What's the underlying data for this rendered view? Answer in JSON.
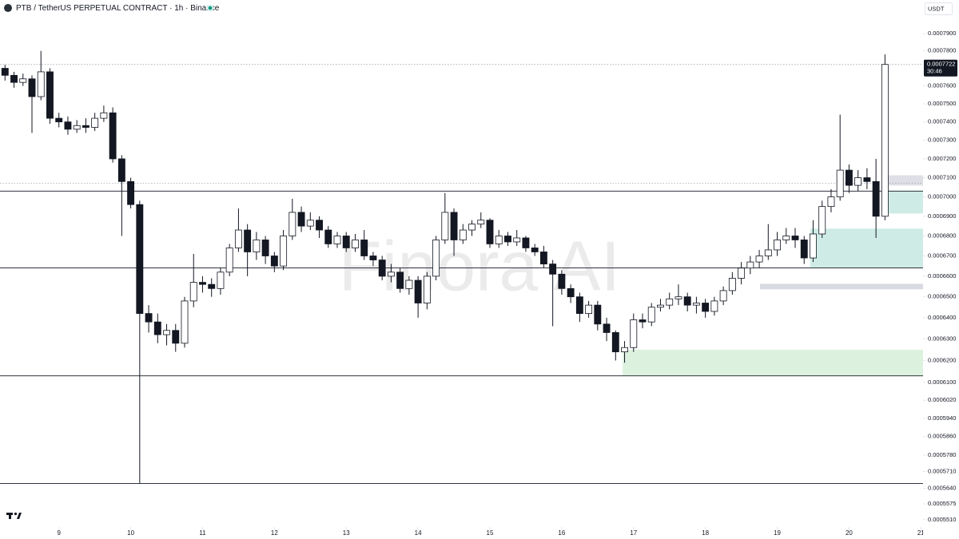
{
  "header": {
    "symbol": "PTB / TetherUS PERPETUAL CONTRACT · 1h · Binance",
    "currency": "USDT",
    "watermark": "Finora AI",
    "countdown": "30:46"
  },
  "chart_data": {
    "type": "candlestick",
    "log_scale": true,
    "grid": false,
    "up_color": "#ffffff",
    "down_color": "#131722",
    "wick_color": "#131722",
    "xlim": [
      8.18,
      21.03
    ],
    "xticks": [
      9,
      10,
      11,
      12,
      13,
      14,
      15,
      16,
      17,
      18,
      19,
      20,
      21
    ],
    "ylim": [
      0.000548,
      0.00081
    ],
    "yticks": [
      {
        "value": 0.00079,
        "label": "0.0007900"
      },
      {
        "value": 0.00078,
        "label": "0.0007800"
      },
      {
        "value": 0.00076,
        "label": "0.0007600"
      },
      {
        "value": 0.00075,
        "label": "0.0007500"
      },
      {
        "value": 0.00074,
        "label": "0.0007400"
      },
      {
        "value": 0.00073,
        "label": "0.0007300"
      },
      {
        "value": 0.00072,
        "label": "0.0007200"
      },
      {
        "value": 0.00071,
        "label": "0.0007100"
      },
      {
        "value": 0.0007,
        "label": "0.0007000"
      },
      {
        "value": 0.00069,
        "label": "0.0006900"
      },
      {
        "value": 0.00068,
        "label": "0.0006800"
      },
      {
        "value": 0.00067,
        "label": "0.0006700"
      },
      {
        "value": 0.00066,
        "label": "0.0006600"
      },
      {
        "value": 0.00065,
        "label": "0.0006500"
      },
      {
        "value": 0.00064,
        "label": "0.0006400"
      },
      {
        "value": 0.00063,
        "label": "0.0006300"
      },
      {
        "value": 0.00062,
        "label": "0.0006200"
      },
      {
        "value": 0.00061,
        "label": "0.0006100"
      },
      {
        "value": 0.000602,
        "label": "0.0006020"
      },
      {
        "value": 0.000594,
        "label": "0.0005940"
      },
      {
        "value": 0.000586,
        "label": "0.0005860"
      },
      {
        "value": 0.000578,
        "label": "0.0005780"
      },
      {
        "value": 0.000571,
        "label": "0.0005710"
      },
      {
        "value": 0.000564,
        "label": "0.0005640"
      },
      0.0005575,
      {
        "value": 0.000551,
        "label": "0.0005510"
      }
    ],
    "x": [
      8.25,
      8.375,
      8.5,
      8.625,
      8.75,
      8.875,
      9,
      9.125,
      9.25,
      9.375,
      9.5,
      9.625,
      9.75,
      9.875,
      10,
      10.125,
      10.25,
      10.375,
      10.5,
      10.625,
      10.75,
      10.875,
      11,
      11.125,
      11.25,
      11.375,
      11.5,
      11.625,
      11.75,
      11.875,
      12,
      12.125,
      12.25,
      12.375,
      12.5,
      12.625,
      12.75,
      12.875,
      13,
      13.125,
      13.25,
      13.375,
      13.5,
      13.625,
      13.75,
      13.875,
      14,
      14.125,
      14.25,
      14.375,
      14.5,
      14.625,
      14.75,
      14.875,
      15,
      15.125,
      15.25,
      15.375,
      15.5,
      15.625,
      15.75,
      15.875,
      16,
      16.125,
      16.25,
      16.375,
      16.5,
      16.625,
      16.75,
      16.875,
      17,
      17.125,
      17.25,
      17.375,
      17.5,
      17.625,
      17.75,
      17.875,
      18,
      18.125,
      18.25,
      18.375,
      18.5,
      18.625,
      18.75,
      18.875,
      19,
      19.125,
      19.25,
      19.375,
      19.5,
      19.625,
      19.75,
      19.875,
      20,
      20.125,
      20.25,
      20.375,
      20.5
    ],
    "open": [
      0.00077,
      0.000766,
      0.000762,
      0.000764,
      0.000754,
      0.000768,
      0.000742,
      0.00074,
      0.000736,
      0.000738,
      0.000737,
      0.000742,
      0.000745,
      0.00072,
      0.000708,
      0.000696,
      0.000642,
      0.000638,
      0.000632,
      0.000634,
      0.000628,
      0.000648,
      0.000657,
      0.000656,
      0.000654,
      0.000662,
      0.000674,
      0.000683,
      0.000672,
      0.000678,
      0.00067,
      0.000665,
      0.00068,
      0.000692,
      0.000685,
      0.000688,
      0.000683,
      0.000676,
      0.00068,
      0.000674,
      0.000678,
      0.00067,
      0.000668,
      0.00066,
      0.000662,
      0.000654,
      0.000658,
      0.000647,
      0.00066,
      0.000678,
      0.000692,
      0.000678,
      0.000683,
      0.000686,
      0.000688,
      0.000676,
      0.00068,
      0.000677,
      0.000679,
      0.000674,
      0.000672,
      0.000666,
      0.000661,
      0.000654,
      0.00065,
      0.000642,
      0.000646,
      0.000637,
      0.000633,
      0.000624,
      0.000626,
      0.000639,
      0.000638,
      0.000645,
      0.000646,
      0.000649,
      0.00065,
      0.000646,
      0.000647,
      0.000643,
      0.000648,
      0.000653,
      0.000659,
      0.000664,
      0.000667,
      0.00067,
      0.000673,
      0.000678,
      0.00068,
      0.000678,
      0.000669,
      0.000681,
      0.000695,
      0.0007,
      0.000714,
      0.000706,
      0.00071,
      0.000708,
      0.00069
    ],
    "high": [
      0.000772,
      0.000768,
      0.000767,
      0.000766,
      0.00078,
      0.00077,
      0.000745,
      0.000743,
      0.000741,
      0.000742,
      0.000745,
      0.000749,
      0.000748,
      0.000722,
      0.00071,
      0.000698,
      0.000646,
      0.000642,
      0.000637,
      0.000637,
      0.00065,
      0.000671,
      0.00066,
      0.000659,
      0.000664,
      0.000676,
      0.000694,
      0.000686,
      0.000682,
      0.00068,
      0.000672,
      0.000683,
      0.000699,
      0.000695,
      0.000692,
      0.00069,
      0.000685,
      0.000682,
      0.000682,
      0.000681,
      0.000683,
      0.000672,
      0.00067,
      0.000666,
      0.000664,
      0.00066,
      0.00066,
      0.000662,
      0.00068,
      0.000702,
      0.000694,
      0.000686,
      0.000688,
      0.000692,
      0.000689,
      0.000683,
      0.000682,
      0.000683,
      0.00068,
      0.000676,
      0.000675,
      0.000668,
      0.000663,
      0.000656,
      0.000652,
      0.000648,
      0.000648,
      0.00064,
      0.000634,
      0.000629,
      0.000642,
      0.000642,
      0.000647,
      0.000649,
      0.000652,
      0.000656,
      0.000652,
      0.00065,
      0.000649,
      0.00065,
      0.000655,
      0.000662,
      0.000667,
      0.00067,
      0.000673,
      0.000686,
      0.000682,
      0.000684,
      0.000684,
      0.00068,
      0.000688,
      0.000698,
      0.000704,
      0.000744,
      0.000717,
      0.000714,
      0.000715,
      0.00072,
      0.000778
    ],
    "low": [
      0.000763,
      0.000759,
      0.00076,
      0.000734,
      0.000752,
      0.000739,
      0.000737,
      0.000733,
      0.000734,
      0.000734,
      0.000735,
      0.00074,
      0.000718,
      0.00068,
      0.000694,
      0.000566,
      0.000633,
      0.000628,
      0.000627,
      0.000624,
      0.000626,
      0.000645,
      0.000652,
      0.00065,
      0.000651,
      0.00066,
      0.000672,
      0.00066,
      0.000668,
      0.000666,
      0.000662,
      0.000663,
      0.000678,
      0.000682,
      0.000683,
      0.000679,
      0.000674,
      0.000674,
      0.000672,
      0.000672,
      0.000668,
      0.000665,
      0.000658,
      0.000657,
      0.000652,
      0.000651,
      0.00064,
      0.000644,
      0.000658,
      0.000676,
      0.00067,
      0.000676,
      0.00068,
      0.000684,
      0.000674,
      0.000674,
      0.000675,
      0.000675,
      0.000672,
      0.00067,
      0.000664,
      0.000636,
      0.000651,
      0.000647,
      0.000638,
      0.00064,
      0.000634,
      0.000629,
      0.00062,
      0.000619,
      0.000624,
      0.000635,
      0.000636,
      0.000643,
      0.000644,
      0.000646,
      0.000643,
      0.000642,
      0.00064,
      0.000641,
      0.000646,
      0.000651,
      0.000656,
      0.000661,
      0.000664,
      0.000668,
      0.00067,
      0.000676,
      0.000674,
      0.000666,
      0.000667,
      0.000679,
      0.000692,
      0.000698,
      0.000702,
      0.000703,
      0.000704,
      0.000679,
      0.000688
    ],
    "close": [
      0.000766,
      0.000762,
      0.000764,
      0.000754,
      0.000768,
      0.000742,
      0.00074,
      0.000736,
      0.000738,
      0.000737,
      0.000742,
      0.000745,
      0.00072,
      0.000708,
      0.000696,
      0.000642,
      0.000638,
      0.000632,
      0.000634,
      0.000628,
      0.000648,
      0.000657,
      0.000656,
      0.000654,
      0.000662,
      0.000674,
      0.000683,
      0.000672,
      0.000678,
      0.00067,
      0.000665,
      0.00068,
      0.000692,
      0.000685,
      0.000688,
      0.000683,
      0.000676,
      0.00068,
      0.000674,
      0.000678,
      0.00067,
      0.000668,
      0.00066,
      0.000662,
      0.000654,
      0.000658,
      0.000647,
      0.00066,
      0.000678,
      0.000692,
      0.000678,
      0.000683,
      0.000686,
      0.000688,
      0.000676,
      0.00068,
      0.000677,
      0.000679,
      0.000674,
      0.000672,
      0.000666,
      0.000661,
      0.000654,
      0.00065,
      0.000642,
      0.000646,
      0.000637,
      0.000633,
      0.000624,
      0.000626,
      0.000639,
      0.000638,
      0.000645,
      0.000646,
      0.000649,
      0.00065,
      0.000646,
      0.000647,
      0.000643,
      0.000648,
      0.000653,
      0.000659,
      0.000664,
      0.000667,
      0.00067,
      0.000673,
      0.000678,
      0.00068,
      0.000678,
      0.000669,
      0.000681,
      0.000695,
      0.0007,
      0.000714,
      0.000706,
      0.00071,
      0.000708,
      0.00069,
      0.0007722
    ],
    "levels": [
      0.000703,
      0.0006641,
      0.000613,
      0.000566
    ],
    "dotted_levels": [
      0.0007071
    ],
    "zones": [
      {
        "start": 16.85,
        "top": 0.000625,
        "bottom": 0.000613,
        "color": "#d7efd9"
      },
      {
        "start": 19.46,
        "top": 0.0006837,
        "bottom": 0.0006641,
        "color": "#c6e9e1"
      },
      {
        "start": 20.45,
        "top": 0.000703,
        "bottom": 0.0006914,
        "color": "#c6e9e1"
      },
      {
        "start": 18.76,
        "top": 0.0006563,
        "bottom": 0.0006536,
        "color": "#d1d4dc"
      },
      {
        "start": 20.51,
        "top": 0.0007113,
        "bottom": 0.0007059,
        "color": "#d9dbe2"
      }
    ]
  }
}
